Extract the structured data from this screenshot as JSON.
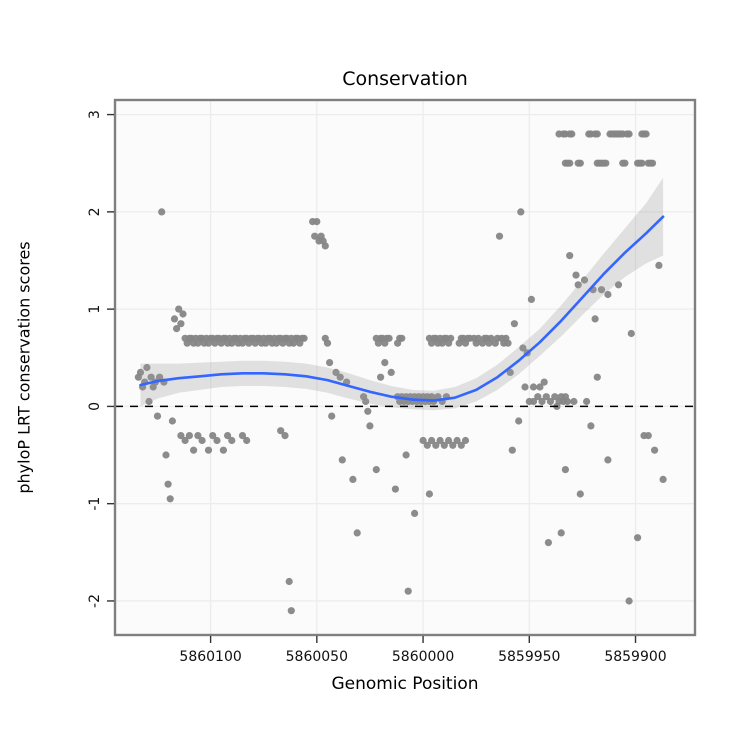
{
  "chart_data": {
    "type": "scatter",
    "title": "Conservation",
    "xlabel": "Genomic Position",
    "ylabel": "phyloP LRT conservation scores",
    "x_axis": {
      "ticks": [
        5860100,
        5860050,
        5860000,
        5859950,
        5859900
      ],
      "reversed": true,
      "range_left": 5860145,
      "range_right": 5859872
    },
    "y_axis": {
      "ticks": [
        -2,
        -1,
        0,
        1,
        2,
        3
      ],
      "range": [
        -2.35,
        3.15
      ]
    },
    "hline": {
      "y": 0,
      "style": "dashed",
      "color": "#000000"
    },
    "colors": {
      "point": "#868686",
      "smooth_line": "#3366FF",
      "ribbon": "#9a9a9a",
      "grid": "#ececec",
      "panel_bg": "#fbfbfb",
      "panel_border": "#7f7f7f",
      "tick_text": "#111111"
    },
    "points": [
      [
        5860112,
        0.7
      ],
      [
        5860111,
        0.65
      ],
      [
        5860110,
        0.7
      ],
      [
        5860109,
        0.7
      ],
      [
        5860108,
        0.65
      ],
      [
        5860107,
        0.7
      ],
      [
        5860106,
        0.65
      ],
      [
        5860105,
        0.7
      ],
      [
        5860104,
        0.7
      ],
      [
        5860103,
        0.65
      ],
      [
        5860102,
        0.7
      ],
      [
        5860101,
        0.65
      ],
      [
        5860100,
        0.7
      ],
      [
        5860099,
        0.7
      ],
      [
        5860098,
        0.65
      ],
      [
        5860097,
        0.7
      ],
      [
        5860096,
        0.7
      ],
      [
        5860095,
        0.65
      ],
      [
        5860094,
        0.7
      ],
      [
        5860093,
        0.7
      ],
      [
        5860092,
        0.65
      ],
      [
        5860091,
        0.7
      ],
      [
        5860090,
        0.65
      ],
      [
        5860089,
        0.7
      ],
      [
        5860088,
        0.7
      ],
      [
        5860087,
        0.65
      ],
      [
        5860086,
        0.7
      ],
      [
        5860085,
        0.65
      ],
      [
        5860084,
        0.7
      ],
      [
        5860083,
        0.7
      ],
      [
        5860082,
        0.65
      ],
      [
        5860081,
        0.7
      ],
      [
        5860080,
        0.7
      ],
      [
        5860079,
        0.65
      ],
      [
        5860078,
        0.7
      ],
      [
        5860077,
        0.7
      ],
      [
        5860076,
        0.65
      ],
      [
        5860075,
        0.7
      ],
      [
        5860074,
        0.65
      ],
      [
        5860073,
        0.7
      ],
      [
        5860072,
        0.7
      ],
      [
        5860071,
        0.65
      ],
      [
        5860070,
        0.7
      ],
      [
        5860069,
        0.65
      ],
      [
        5860068,
        0.7
      ],
      [
        5860067,
        0.7
      ],
      [
        5860066,
        0.65
      ],
      [
        5860065,
        0.7
      ],
      [
        5860064,
        0.7
      ],
      [
        5860063,
        0.65
      ],
      [
        5860062,
        0.7
      ],
      [
        5860061,
        0.65
      ],
      [
        5860060,
        0.7
      ],
      [
        5860059,
        0.7
      ],
      [
        5860058,
        0.65
      ],
      [
        5860057,
        0.7
      ],
      [
        5860056,
        0.7
      ],
      [
        5860022,
        0.7
      ],
      [
        5860021,
        0.65
      ],
      [
        5860020,
        0.7
      ],
      [
        5860019,
        0.7
      ],
      [
        5860018,
        0.65
      ],
      [
        5860017,
        0.7
      ],
      [
        5860016,
        0.7
      ],
      [
        5860012,
        0.65
      ],
      [
        5860011,
        0.7
      ],
      [
        5860010,
        0.7
      ],
      [
        5859997,
        0.7
      ],
      [
        5859996,
        0.65
      ],
      [
        5859995,
        0.7
      ],
      [
        5859994,
        0.7
      ],
      [
        5859993,
        0.65
      ],
      [
        5859992,
        0.7
      ],
      [
        5859991,
        0.65
      ],
      [
        5859990,
        0.7
      ],
      [
        5859989,
        0.7
      ],
      [
        5859988,
        0.65
      ],
      [
        5859987,
        0.7
      ],
      [
        5859983,
        0.65
      ],
      [
        5859982,
        0.7
      ],
      [
        5859981,
        0.7
      ],
      [
        5859980,
        0.65
      ],
      [
        5859979,
        0.7
      ],
      [
        5859978,
        0.7
      ],
      [
        5859976,
        0.7
      ],
      [
        5859975,
        0.65
      ],
      [
        5859974,
        0.7
      ],
      [
        5859972,
        0.65
      ],
      [
        5859971,
        0.7
      ],
      [
        5859970,
        0.7
      ],
      [
        5859969,
        0.65
      ],
      [
        5859968,
        0.7
      ],
      [
        5859966,
        0.65
      ],
      [
        5859965,
        0.7
      ],
      [
        5859963,
        0.7
      ],
      [
        5859962,
        0.65
      ],
      [
        5859961,
        0.7
      ],
      [
        5859960,
        0.65
      ],
      [
        5860134,
        0.3
      ],
      [
        5860133,
        0.35
      ],
      [
        5860132,
        0.2
      ],
      [
        5860131,
        0.25
      ],
      [
        5860130,
        0.4
      ],
      [
        5860129,
        0.05
      ],
      [
        5860128,
        0.3
      ],
      [
        5860127,
        0.2
      ],
      [
        5860126,
        0.25
      ],
      [
        5860125,
        -0.1
      ],
      [
        5860124,
        0.3
      ],
      [
        5860123,
        2.0
      ],
      [
        5860122,
        0.25
      ],
      [
        5860121,
        -0.5
      ],
      [
        5860120,
        -0.8
      ],
      [
        5860119,
        -0.95
      ],
      [
        5860117,
        0.9
      ],
      [
        5860116,
        0.8
      ],
      [
        5860115,
        1.0
      ],
      [
        5860114,
        0.85
      ],
      [
        5860113,
        0.95
      ],
      [
        5860118,
        -0.15
      ],
      [
        5860114,
        -0.3
      ],
      [
        5860112,
        -0.35
      ],
      [
        5860110,
        -0.3
      ],
      [
        5860108,
        -0.45
      ],
      [
        5860106,
        -0.3
      ],
      [
        5860104,
        -0.35
      ],
      [
        5860101,
        -0.45
      ],
      [
        5860099,
        -0.3
      ],
      [
        5860097,
        -0.35
      ],
      [
        5860094,
        -0.45
      ],
      [
        5860092,
        -0.3
      ],
      [
        5860090,
        -0.35
      ],
      [
        5860085,
        -0.3
      ],
      [
        5860083,
        -0.35
      ],
      [
        5860052,
        1.9
      ],
      [
        5860051,
        1.75
      ],
      [
        5860050,
        1.9
      ],
      [
        5860049,
        1.7
      ],
      [
        5860048,
        1.75
      ],
      [
        5860047,
        1.7
      ],
      [
        5860046,
        1.65
      ],
      [
        5860062,
        -2.1
      ],
      [
        5860063,
        -1.8
      ],
      [
        5860044,
        0.45
      ],
      [
        5860041,
        0.35
      ],
      [
        5860039,
        0.3
      ],
      [
        5860036,
        0.25
      ],
      [
        5860043,
        -0.1
      ],
      [
        5860038,
        -0.55
      ],
      [
        5860033,
        -0.75
      ],
      [
        5860031,
        -1.3
      ],
      [
        5860046,
        0.7
      ],
      [
        5860045,
        0.65
      ],
      [
        5860067,
        -0.25
      ],
      [
        5860065,
        -0.3
      ],
      [
        5860012,
        0.1
      ],
      [
        5860011,
        0.05
      ],
      [
        5860010,
        0.1
      ],
      [
        5860009,
        0.05
      ],
      [
        5860008,
        0.1
      ],
      [
        5860007,
        0.05
      ],
      [
        5860006,
        0.1
      ],
      [
        5860005,
        0.05
      ],
      [
        5860004,
        0.1
      ],
      [
        5860003,
        0.05
      ],
      [
        5860002,
        0.1
      ],
      [
        5860001,
        0.05
      ],
      [
        5860000,
        0.1
      ],
      [
        5859999,
        0.05
      ],
      [
        5859998,
        0.1
      ],
      [
        5859997,
        0.05
      ],
      [
        5859996,
        0.1
      ],
      [
        5859995,
        0.05
      ],
      [
        5859993,
        0.1
      ],
      [
        5859991,
        0.05
      ],
      [
        5859989,
        0.1
      ],
      [
        5860015,
        0.35
      ],
      [
        5860018,
        0.45
      ],
      [
        5860020,
        0.3
      ],
      [
        5860028,
        0.1
      ],
      [
        5860027,
        0.05
      ],
      [
        5860026,
        -0.05
      ],
      [
        5860000,
        -0.35
      ],
      [
        5859998,
        -0.4
      ],
      [
        5859996,
        -0.35
      ],
      [
        5859994,
        -0.4
      ],
      [
        5859992,
        -0.35
      ],
      [
        5859990,
        -0.4
      ],
      [
        5859988,
        -0.35
      ],
      [
        5859986,
        -0.4
      ],
      [
        5859984,
        -0.35
      ],
      [
        5859982,
        -0.4
      ],
      [
        5859980,
        -0.35
      ],
      [
        5860025,
        -0.2
      ],
      [
        5860022,
        -0.65
      ],
      [
        5860013,
        -0.85
      ],
      [
        5860008,
        -0.5
      ],
      [
        5860004,
        -1.1
      ],
      [
        5859997,
        -0.9
      ],
      [
        5860007,
        -1.9
      ],
      [
        5859964,
        1.75
      ],
      [
        5859954,
        2.0
      ],
      [
        5859949,
        1.1
      ],
      [
        5859957,
        0.85
      ],
      [
        5859953,
        0.6
      ],
      [
        5859951,
        0.55
      ],
      [
        5859959,
        0.35
      ],
      [
        5859952,
        0.2
      ],
      [
        5859948,
        0.2
      ],
      [
        5859945,
        0.2
      ],
      [
        5859943,
        0.25
      ],
      [
        5859955,
        -0.15
      ],
      [
        5859958,
        -0.45
      ],
      [
        5859941,
        -1.4
      ],
      [
        5859950,
        0.05
      ],
      [
        5859948,
        0.05
      ],
      [
        5859946,
        0.1
      ],
      [
        5859944,
        0.05
      ],
      [
        5859942,
        0.1
      ],
      [
        5859940,
        0.05
      ],
      [
        5859938,
        0.1
      ],
      [
        5859936,
        0.05
      ],
      [
        5859935,
        0.1
      ],
      [
        5859934,
        0.05
      ],
      [
        5859933,
        0.1
      ],
      [
        5859932,
        0.05
      ],
      [
        5859937,
        0.0
      ],
      [
        5859929,
        0.05
      ],
      [
        5859936,
        2.8
      ],
      [
        5859934,
        2.8
      ],
      [
        5859933,
        2.8
      ],
      [
        5859931,
        2.8
      ],
      [
        5859930,
        2.8
      ],
      [
        5859922,
        2.8
      ],
      [
        5859921,
        2.8
      ],
      [
        5859919,
        2.8
      ],
      [
        5859918,
        2.8
      ],
      [
        5859912,
        2.8
      ],
      [
        5859911,
        2.8
      ],
      [
        5859910,
        2.8
      ],
      [
        5859909,
        2.8
      ],
      [
        5859908,
        2.8
      ],
      [
        5859907,
        2.8
      ],
      [
        5859906,
        2.8
      ],
      [
        5859904,
        2.8
      ],
      [
        5859903,
        2.8
      ],
      [
        5859897,
        2.8
      ],
      [
        5859896,
        2.8
      ],
      [
        5859895,
        2.8
      ],
      [
        5859933,
        2.5
      ],
      [
        5859932,
        2.5
      ],
      [
        5859931,
        2.5
      ],
      [
        5859927,
        2.5
      ],
      [
        5859926,
        2.5
      ],
      [
        5859918,
        2.5
      ],
      [
        5859917,
        2.5
      ],
      [
        5859916,
        2.5
      ],
      [
        5859915,
        2.5
      ],
      [
        5859914,
        2.5
      ],
      [
        5859906,
        2.5
      ],
      [
        5859905,
        2.5
      ],
      [
        5859899,
        2.5
      ],
      [
        5859898,
        2.5
      ],
      [
        5859897,
        2.5
      ],
      [
        5859894,
        2.5
      ],
      [
        5859893,
        2.5
      ],
      [
        5859892,
        2.5
      ],
      [
        5859931,
        1.55
      ],
      [
        5859928,
        1.35
      ],
      [
        5859927,
        1.25
      ],
      [
        5859924,
        1.3
      ],
      [
        5859920,
        1.2
      ],
      [
        5859916,
        1.2
      ],
      [
        5859913,
        1.15
      ],
      [
        5859908,
        1.25
      ],
      [
        5859889,
        1.45
      ],
      [
        5859919,
        0.9
      ],
      [
        5859918,
        0.3
      ],
      [
        5859921,
        -0.2
      ],
      [
        5859913,
        -0.55
      ],
      [
        5859926,
        -0.9
      ],
      [
        5859935,
        -1.3
      ],
      [
        5859903,
        -2.0
      ],
      [
        5859899,
        -1.35
      ],
      [
        5859896,
        -0.3
      ],
      [
        5859894,
        -0.3
      ],
      [
        5859887,
        -0.75
      ],
      [
        5859891,
        -0.45
      ],
      [
        5859923,
        0.05
      ],
      [
        5859902,
        0.75
      ],
      [
        5859933,
        -0.65
      ]
    ],
    "smooth": {
      "x": [
        5860133,
        5860125,
        5860115,
        5860105,
        5860095,
        5860085,
        5860075,
        5860065,
        5860055,
        5860045,
        5860035,
        5860025,
        5860015,
        5860005,
        5859995,
        5859985,
        5859975,
        5859965,
        5859955,
        5859945,
        5859935,
        5859925,
        5859915,
        5859905,
        5859895,
        5859887
      ],
      "y": [
        0.22,
        0.26,
        0.29,
        0.31,
        0.33,
        0.34,
        0.34,
        0.33,
        0.31,
        0.27,
        0.21,
        0.15,
        0.1,
        0.07,
        0.06,
        0.09,
        0.17,
        0.3,
        0.47,
        0.66,
        0.88,
        1.12,
        1.36,
        1.58,
        1.78,
        1.95
      ],
      "lower": [
        0.0,
        0.08,
        0.14,
        0.17,
        0.2,
        0.21,
        0.21,
        0.2,
        0.18,
        0.14,
        0.08,
        0.03,
        -0.01,
        -0.03,
        -0.04,
        -0.02,
        0.05,
        0.17,
        0.33,
        0.52,
        0.72,
        0.94,
        1.15,
        1.33,
        1.47,
        1.55
      ],
      "upper": [
        0.44,
        0.44,
        0.44,
        0.45,
        0.46,
        0.47,
        0.47,
        0.46,
        0.44,
        0.4,
        0.34,
        0.27,
        0.21,
        0.17,
        0.16,
        0.2,
        0.29,
        0.43,
        0.61,
        0.8,
        1.04,
        1.3,
        1.57,
        1.83,
        2.09,
        2.35
      ]
    }
  }
}
